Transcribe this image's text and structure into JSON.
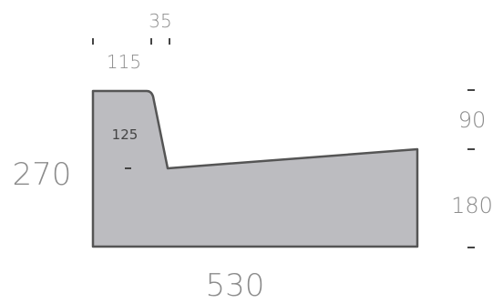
{
  "dimensions": {
    "top_flat": "115",
    "top_chamfer": "35",
    "inner_height": "125",
    "overall_width": "530",
    "overall_height": "270",
    "right_upper": "90",
    "right_lower": "180"
  },
  "colors": {
    "profile_fill": "#bcbcc0",
    "profile_stroke": "#555555",
    "dimension_text": "#8c8c8c",
    "tick_marks": "#444444"
  }
}
